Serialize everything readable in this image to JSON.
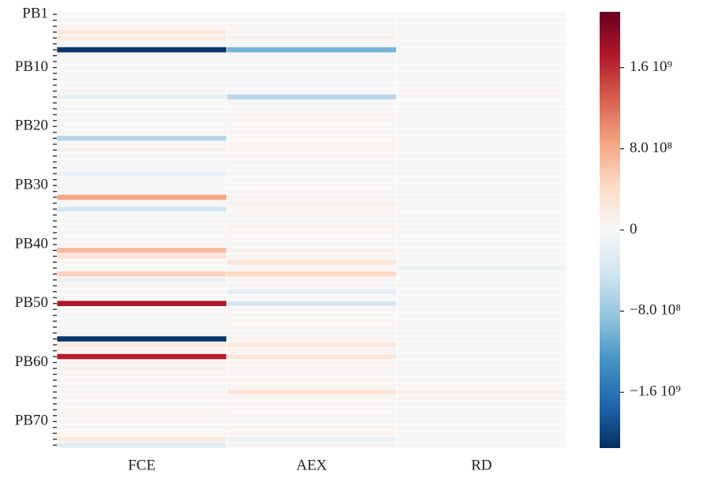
{
  "chart_data": {
    "type": "heatmap",
    "x_categories": [
      "FCE",
      "AEX",
      "RD"
    ],
    "y_categories": [
      "PB1",
      null,
      null,
      null,
      null,
      null,
      null,
      null,
      null,
      "PB10",
      null,
      null,
      null,
      null,
      null,
      null,
      null,
      null,
      null,
      "PB20",
      null,
      null,
      null,
      null,
      null,
      null,
      null,
      null,
      null,
      "PB30",
      null,
      null,
      null,
      null,
      null,
      null,
      null,
      null,
      null,
      "PB40",
      null,
      null,
      null,
      null,
      null,
      null,
      null,
      null,
      null,
      "PB50",
      null,
      null,
      null,
      null,
      null,
      null,
      null,
      null,
      null,
      "PB60",
      null,
      null,
      null,
      null,
      null,
      null,
      null,
      null,
      null,
      "PB70",
      null,
      null,
      null,
      null
    ],
    "values": [
      [
        20000000.0,
        10000000.0,
        10000000.0
      ],
      [
        30000000.0,
        20000000.0,
        10000000.0
      ],
      [
        20000000.0,
        30000000.0,
        10000000.0
      ],
      [
        250000000.0,
        50000000.0,
        10000000.0
      ],
      [
        200000000.0,
        60000000.0,
        10000000.0
      ],
      [
        30000000.0,
        20000000.0,
        10000000.0
      ],
      [
        -2100000000.0,
        -1000000000.0,
        10000000.0
      ],
      [
        20000000.0,
        20000000.0,
        10000000.0
      ],
      [
        10000000.0,
        10000000.0,
        10000000.0
      ],
      [
        10000000.0,
        20000000.0,
        10000000.0
      ],
      [
        20000000.0,
        10000000.0,
        10000000.0
      ],
      [
        10000000.0,
        10000000.0,
        20000000.0
      ],
      [
        20000000.0,
        30000000.0,
        20000000.0
      ],
      [
        30000000.0,
        20000000.0,
        40000000.0
      ],
      [
        -150000000.0,
        -600000000.0,
        30000000.0
      ],
      [
        20000000.0,
        30000000.0,
        20000000.0
      ],
      [
        30000000.0,
        20000000.0,
        10000000.0
      ],
      [
        20000000.0,
        40000000.0,
        10000000.0
      ],
      [
        30000000.0,
        50000000.0,
        20000000.0
      ],
      [
        20000000.0,
        30000000.0,
        10000000.0
      ],
      [
        30000000.0,
        40000000.0,
        10000000.0
      ],
      [
        -600000000.0,
        50000000.0,
        20000000.0
      ],
      [
        30000000.0,
        60000000.0,
        10000000.0
      ],
      [
        80000000.0,
        50000000.0,
        10000000.0
      ],
      [
        30000000.0,
        40000000.0,
        10000000.0
      ],
      [
        20000000.0,
        30000000.0,
        10000000.0
      ],
      [
        20000000.0,
        20000000.0,
        10000000.0
      ],
      [
        -150000000.0,
        30000000.0,
        10000000.0
      ],
      [
        20000000.0,
        20000000.0,
        10000000.0
      ],
      [
        30000000.0,
        30000000.0,
        10000000.0
      ],
      [
        20000000.0,
        40000000.0,
        10000000.0
      ],
      [
        850000000.0,
        30000000.0,
        10000000.0
      ],
      [
        40000000.0,
        90000000.0,
        20000000.0
      ],
      [
        -400000000.0,
        50000000.0,
        10000000.0
      ],
      [
        30000000.0,
        40000000.0,
        10000000.0
      ],
      [
        20000000.0,
        30000000.0,
        10000000.0
      ],
      [
        30000000.0,
        60000000.0,
        10000000.0
      ],
      [
        20000000.0,
        30000000.0,
        10000000.0
      ],
      [
        30000000.0,
        40000000.0,
        10000000.0
      ],
      [
        20000000.0,
        30000000.0,
        10000000.0
      ],
      [
        700000000.0,
        60000000.0,
        10000000.0
      ],
      [
        300000000.0,
        50000000.0,
        10000000.0
      ],
      [
        30000000.0,
        300000000.0,
        10000000.0
      ],
      [
        20000000.0,
        50000000.0,
        -100000000.0
      ],
      [
        500000000.0,
        450000000.0,
        10000000.0
      ],
      [
        -150000000.0,
        30000000.0,
        10000000.0
      ],
      [
        30000000.0,
        40000000.0,
        10000000.0
      ],
      [
        20000000.0,
        -200000000.0,
        10000000.0
      ],
      [
        30000000.0,
        50000000.0,
        10000000.0
      ],
      [
        1750000000.0,
        -350000000.0,
        10000000.0
      ],
      [
        30000000.0,
        40000000.0,
        10000000.0
      ],
      [
        20000000.0,
        30000000.0,
        10000000.0
      ],
      [
        30000000.0,
        50000000.0,
        10000000.0
      ],
      [
        20000000.0,
        40000000.0,
        10000000.0
      ],
      [
        30000000.0,
        30000000.0,
        10000000.0
      ],
      [
        -2100000000.0,
        50000000.0,
        10000000.0
      ],
      [
        200000000.0,
        250000000.0,
        10000000.0
      ],
      [
        30000000.0,
        40000000.0,
        10000000.0
      ],
      [
        1700000000.0,
        250000000.0,
        10000000.0
      ],
      [
        60000000.0,
        50000000.0,
        10000000.0
      ],
      [
        100000000.0,
        40000000.0,
        10000000.0
      ],
      [
        30000000.0,
        30000000.0,
        10000000.0
      ],
      [
        40000000.0,
        50000000.0,
        20000000.0
      ],
      [
        30000000.0,
        40000000.0,
        20000000.0
      ],
      [
        30000000.0,
        300000000.0,
        100000000.0
      ],
      [
        40000000.0,
        50000000.0,
        30000000.0
      ],
      [
        30000000.0,
        40000000.0,
        20000000.0
      ],
      [
        50000000.0,
        30000000.0,
        10000000.0
      ],
      [
        30000000.0,
        40000000.0,
        10000000.0
      ],
      [
        40000000.0,
        30000000.0,
        10000000.0
      ],
      [
        30000000.0,
        50000000.0,
        10000000.0
      ],
      [
        50000000.0,
        40000000.0,
        10000000.0
      ],
      [
        200000000.0,
        -150000000.0,
        10000000.0
      ],
      [
        -250000000.0,
        30000000.0,
        10000000.0
      ]
    ],
    "vlim": [
      -2150000000.0,
      2150000000.0
    ],
    "colorbar_ticks": [
      {
        "value": 1600000000.0,
        "label": "1.6 10⁹"
      },
      {
        "value": 800000000.0,
        "label": "8.0 10⁸"
      },
      0,
      {
        "value": -800000000.0,
        "label": "−8.0 10⁸"
      },
      {
        "value": -1600000000.0,
        "label": "−1.6 10⁹"
      }
    ],
    "colorscale": [
      "#053061",
      "#2166ac",
      "#4393c3",
      "#92c5de",
      "#d1e5f0",
      "#f7f7f7",
      "#fddbc7",
      "#f4a582",
      "#d6604d",
      "#b2182b",
      "#67001f"
    ]
  }
}
